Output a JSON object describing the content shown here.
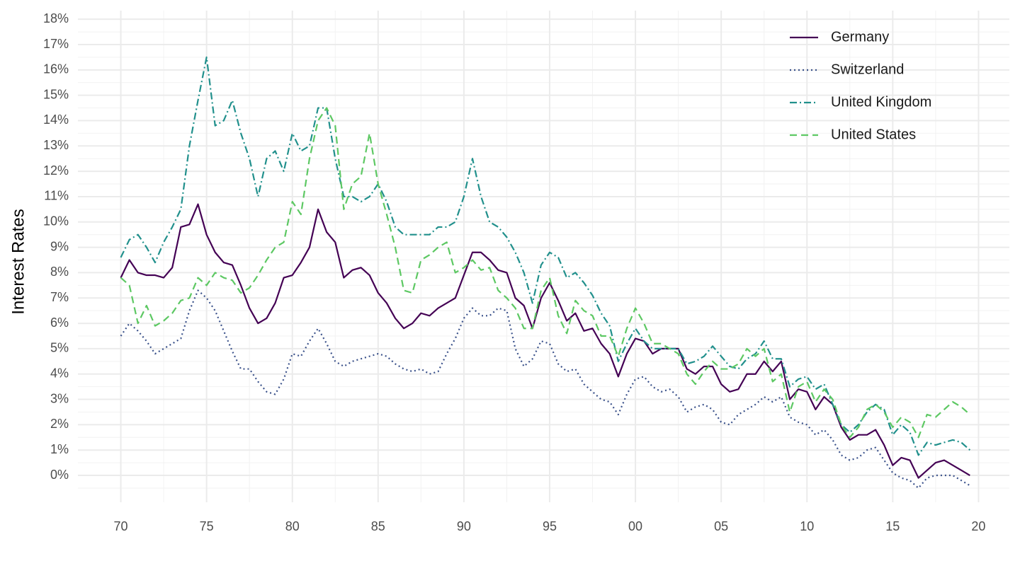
{
  "chart_data": {
    "type": "line",
    "y_label": "Interest Rates",
    "x": [
      1970,
      1970.5,
      1971,
      1971.5,
      1972,
      1972.5,
      1973,
      1973.5,
      1974,
      1974.5,
      1975,
      1975.5,
      1976,
      1976.5,
      1977,
      1977.5,
      1978,
      1978.5,
      1979,
      1979.5,
      1980,
      1980.5,
      1981,
      1981.5,
      1982,
      1982.5,
      1983,
      1983.5,
      1984,
      1984.5,
      1985,
      1985.5,
      1986,
      1986.5,
      1987,
      1987.5,
      1988,
      1988.5,
      1989,
      1989.5,
      1990,
      1990.5,
      1991,
      1991.5,
      1992,
      1992.5,
      1993,
      1993.5,
      1994,
      1994.5,
      1995,
      1995.5,
      1996,
      1996.5,
      1997,
      1997.5,
      1998,
      1998.5,
      1999,
      1999.5,
      2000,
      2000.5,
      2001,
      2001.5,
      2002,
      2002.5,
      2003,
      2003.5,
      2004,
      2004.5,
      2005,
      2005.5,
      2006,
      2006.5,
      2007,
      2007.5,
      2008,
      2008.5,
      2009,
      2009.5,
      2010,
      2010.5,
      2011,
      2011.5,
      2012,
      2012.5,
      2013,
      2013.5,
      2014,
      2014.5,
      2015,
      2015.5,
      2016,
      2016.5,
      2017,
      2017.5,
      2018,
      2018.5,
      2019,
      2019.5
    ],
    "series": [
      {
        "name": "Germany",
        "color": "#440154",
        "dash": "solid",
        "values": [
          7.8,
          8.5,
          8.0,
          7.9,
          7.9,
          7.8,
          8.2,
          9.8,
          9.9,
          10.7,
          9.5,
          8.8,
          8.4,
          8.3,
          7.5,
          6.6,
          6.0,
          6.2,
          6.8,
          7.8,
          7.9,
          8.4,
          9.0,
          10.5,
          9.6,
          9.2,
          7.8,
          8.1,
          8.2,
          7.9,
          7.2,
          6.8,
          6.2,
          5.8,
          6.0,
          6.4,
          6.3,
          6.6,
          6.8,
          7.0,
          7.9,
          8.8,
          8.8,
          8.5,
          8.1,
          8.0,
          7.0,
          6.7,
          5.8,
          7.0,
          7.6,
          6.9,
          6.1,
          6.4,
          5.7,
          5.8,
          5.2,
          4.8,
          3.9,
          4.8,
          5.4,
          5.3,
          4.8,
          5.0,
          5.0,
          5.0,
          4.2,
          4.0,
          4.3,
          4.3,
          3.6,
          3.3,
          3.4,
          4.0,
          4.0,
          4.5,
          4.1,
          4.5,
          3.0,
          3.4,
          3.3,
          2.6,
          3.1,
          2.8,
          1.9,
          1.4,
          1.6,
          1.6,
          1.8,
          1.2,
          0.4,
          0.7,
          0.6,
          -0.1,
          0.2,
          0.5,
          0.6,
          0.4,
          0.2,
          0.0
        ]
      },
      {
        "name": "Switzerland",
        "color": "#3b528b",
        "dash": "dotted",
        "values": [
          5.5,
          6.0,
          5.7,
          5.3,
          4.8,
          5.0,
          5.2,
          5.4,
          6.5,
          7.3,
          7.0,
          6.5,
          5.7,
          4.9,
          4.2,
          4.2,
          3.7,
          3.3,
          3.2,
          3.8,
          4.8,
          4.7,
          5.3,
          5.8,
          5.2,
          4.5,
          4.3,
          4.5,
          4.6,
          4.7,
          4.8,
          4.7,
          4.4,
          4.2,
          4.1,
          4.2,
          4.0,
          4.1,
          4.8,
          5.4,
          6.2,
          6.6,
          6.3,
          6.3,
          6.6,
          6.5,
          5.0,
          4.3,
          4.6,
          5.3,
          5.2,
          4.4,
          4.1,
          4.2,
          3.6,
          3.3,
          3.0,
          2.9,
          2.4,
          3.2,
          3.8,
          3.9,
          3.5,
          3.3,
          3.4,
          3.1,
          2.5,
          2.7,
          2.8,
          2.6,
          2.1,
          2.0,
          2.4,
          2.6,
          2.8,
          3.1,
          2.9,
          3.1,
          2.3,
          2.1,
          2.0,
          1.6,
          1.8,
          1.4,
          0.8,
          0.6,
          0.7,
          1.0,
          1.1,
          0.6,
          0.1,
          -0.1,
          -0.2,
          -0.5,
          -0.1,
          0.0,
          0.0,
          0.0,
          -0.2,
          -0.4
        ]
      },
      {
        "name": "United Kingdom",
        "color": "#21908c",
        "dash": "dashdot",
        "values": [
          8.6,
          9.3,
          9.5,
          9.0,
          8.4,
          9.2,
          9.8,
          10.5,
          13.0,
          14.8,
          16.5,
          13.8,
          14.0,
          14.8,
          13.5,
          12.5,
          11.0,
          12.5,
          12.8,
          12.0,
          13.5,
          12.8,
          13.0,
          14.5,
          14.5,
          12.5,
          11.0,
          11.0,
          10.8,
          11.0,
          11.5,
          10.8,
          9.8,
          9.5,
          9.5,
          9.5,
          9.5,
          9.8,
          9.8,
          10.0,
          11.0,
          12.5,
          11.0,
          10.0,
          9.8,
          9.4,
          8.8,
          8.0,
          6.8,
          8.3,
          8.8,
          8.6,
          7.8,
          8.0,
          7.6,
          7.1,
          6.4,
          5.9,
          4.5,
          5.2,
          5.8,
          5.3,
          5.0,
          5.0,
          5.0,
          5.0,
          4.4,
          4.5,
          4.7,
          5.1,
          4.7,
          4.3,
          4.2,
          4.6,
          4.8,
          5.3,
          4.6,
          4.6,
          3.5,
          3.8,
          3.9,
          3.4,
          3.6,
          2.8,
          2.0,
          1.7,
          2.0,
          2.5,
          2.8,
          2.6,
          1.6,
          2.0,
          1.7,
          0.8,
          1.3,
          1.2,
          1.3,
          1.4,
          1.3,
          1.0
        ]
      },
      {
        "name": "United States",
        "color": "#5dc863",
        "dash": "dashed",
        "values": [
          7.8,
          7.5,
          6.0,
          6.7,
          5.9,
          6.1,
          6.4,
          6.9,
          7.0,
          7.8,
          7.5,
          8.0,
          7.8,
          7.7,
          7.2,
          7.4,
          7.9,
          8.5,
          9.0,
          9.2,
          10.8,
          10.3,
          12.5,
          14.0,
          14.5,
          13.8,
          10.5,
          11.5,
          11.8,
          13.5,
          11.5,
          10.3,
          9.0,
          7.3,
          7.2,
          8.5,
          8.7,
          9.0,
          9.2,
          8.0,
          8.2,
          8.5,
          8.1,
          8.2,
          7.3,
          7.0,
          6.6,
          5.8,
          5.8,
          7.3,
          7.8,
          6.3,
          5.6,
          6.9,
          6.5,
          6.3,
          5.5,
          5.5,
          4.7,
          5.8,
          6.6,
          6.0,
          5.2,
          5.2,
          5.0,
          4.8,
          4.0,
          3.6,
          4.1,
          4.5,
          4.2,
          4.2,
          4.4,
          5.0,
          4.7,
          5.0,
          3.7,
          4.0,
          2.5,
          3.5,
          3.7,
          2.9,
          3.4,
          3.0,
          2.0,
          1.5,
          1.9,
          2.6,
          2.8,
          2.5,
          1.9,
          2.3,
          2.1,
          1.5,
          2.4,
          2.3,
          2.6,
          2.9,
          2.7,
          2.4
        ]
      }
    ],
    "xlim": [
      1967.5,
      2021.8
    ],
    "xticks": [
      {
        "value": 1970,
        "label": "70"
      },
      {
        "value": 1975,
        "label": "75"
      },
      {
        "value": 1980,
        "label": "80"
      },
      {
        "value": 1985,
        "label": "85"
      },
      {
        "value": 1990,
        "label": "90"
      },
      {
        "value": 1995,
        "label": "95"
      },
      {
        "value": 2000,
        "label": "00"
      },
      {
        "value": 2005,
        "label": "05"
      },
      {
        "value": 2010,
        "label": "10"
      },
      {
        "value": 2015,
        "label": "15"
      },
      {
        "value": 2020,
        "label": "20"
      }
    ],
    "ylim": [
      -1.06,
      18.34
    ],
    "yticks": [
      {
        "value": 0,
        "label": "0%"
      },
      {
        "value": 1,
        "label": "1%"
      },
      {
        "value": 2,
        "label": "2%"
      },
      {
        "value": 3,
        "label": "3%"
      },
      {
        "value": 4,
        "label": "4%"
      },
      {
        "value": 5,
        "label": "5%"
      },
      {
        "value": 6,
        "label": "6%"
      },
      {
        "value": 7,
        "label": "7%"
      },
      {
        "value": 8,
        "label": "8%"
      },
      {
        "value": 9,
        "label": "9%"
      },
      {
        "value": 10,
        "label": "10%"
      },
      {
        "value": 11,
        "label": "11%"
      },
      {
        "value": 12,
        "label": "12%"
      },
      {
        "value": 13,
        "label": "13%"
      },
      {
        "value": 14,
        "label": "14%"
      },
      {
        "value": 15,
        "label": "15%"
      },
      {
        "value": 16,
        "label": "16%"
      },
      {
        "value": 17,
        "label": "17%"
      },
      {
        "value": 18,
        "label": "18%"
      }
    ],
    "grid": true,
    "legend_position": "top-right"
  }
}
